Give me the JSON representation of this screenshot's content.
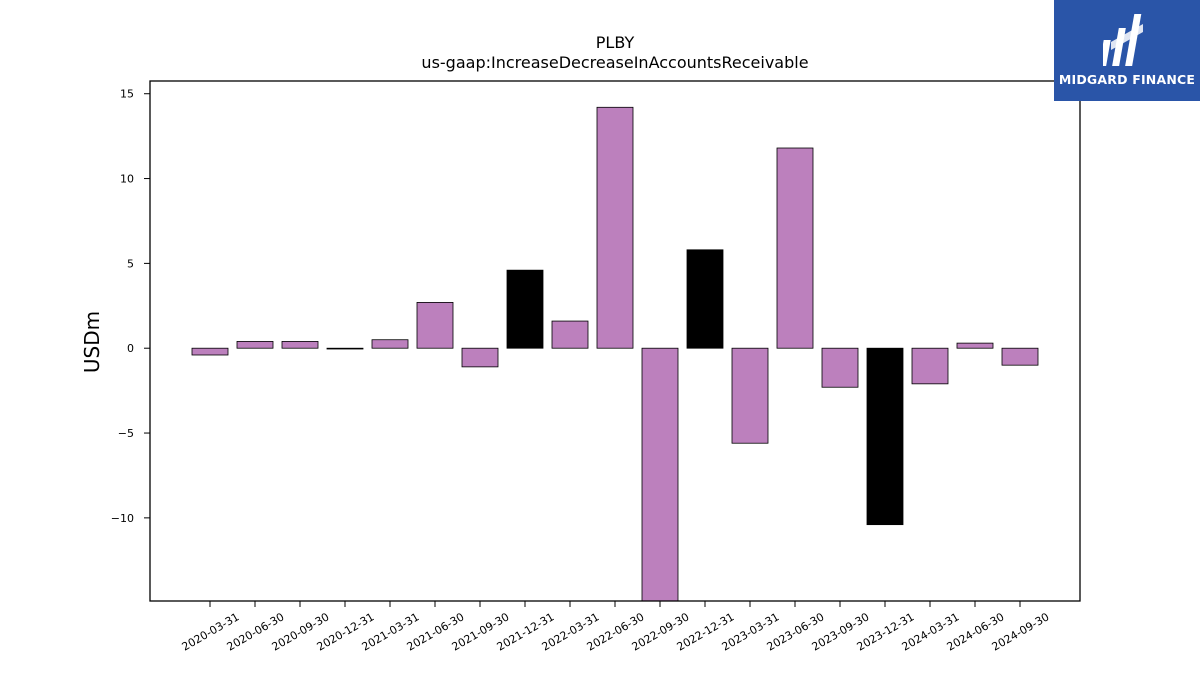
{
  "brand": {
    "name": "MIDGARD FINANCE",
    "bg_color": "#2a55a8"
  },
  "chart_data": {
    "type": "bar",
    "title": "PLBY",
    "subtitle": "us-gaap:IncreaseDecreaseInAccountsReceivable",
    "xlabel": "",
    "ylabel": "USDm",
    "ylim": [
      -14.9,
      15.75
    ],
    "yticks": [
      15,
      10,
      5,
      0,
      -5,
      -10
    ],
    "ytick_labels": [
      "15",
      "10",
      "5",
      "0",
      "−5",
      "−10"
    ],
    "grid": false,
    "categories": [
      "2020-03-31",
      "2020-06-30",
      "2020-09-30",
      "2020-12-31",
      "2021-03-31",
      "2021-06-30",
      "2021-09-30",
      "2021-12-31",
      "2022-03-31",
      "2022-06-30",
      "2022-09-30",
      "2022-12-31",
      "2023-03-31",
      "2023-06-30",
      "2023-09-30",
      "2023-12-31",
      "2024-03-31",
      "2024-06-30",
      "2024-09-30"
    ],
    "values": [
      -0.4,
      0.4,
      0.4,
      0.0,
      0.5,
      2.7,
      -1.1,
      4.6,
      1.6,
      14.2,
      -15.5,
      5.8,
      -5.6,
      11.8,
      -2.3,
      -10.4,
      -2.1,
      0.3,
      -1.0
    ],
    "bar_colors": [
      "#bc80bd",
      "#bc80bd",
      "#bc80bd",
      "#bc80bd",
      "#bc80bd",
      "#bc80bd",
      "#bc80bd",
      "#000000",
      "#bc80bd",
      "#bc80bd",
      "#bc80bd",
      "#000000",
      "#bc80bd",
      "#bc80bd",
      "#bc80bd",
      "#000000",
      "#bc80bd",
      "#bc80bd",
      "#bc80bd"
    ],
    "default_bar_color": "#bc80bd",
    "highlight_bar_color": "#000000"
  }
}
